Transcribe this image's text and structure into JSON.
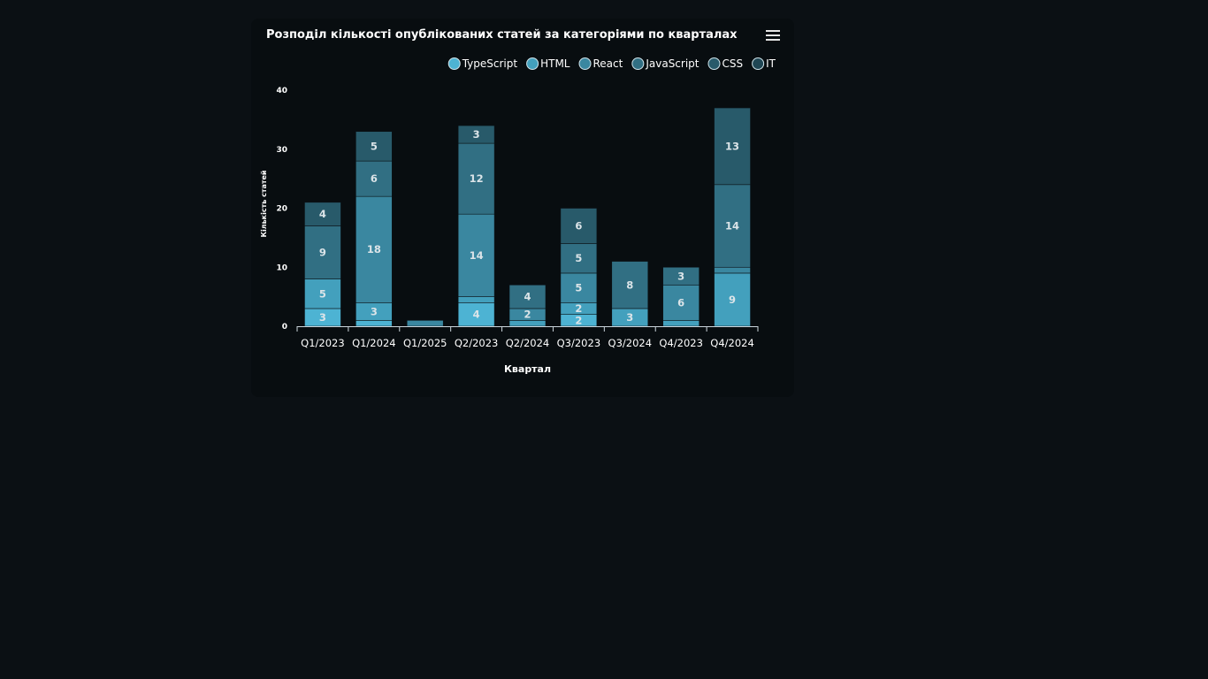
{
  "chart_data": {
    "type": "bar",
    "stacked": true,
    "title": "Розподіл кількості опублікованих статей за категоріями по кварталах",
    "xlabel": "Квартал",
    "ylabel": "Кількість статей",
    "ylim": [
      0,
      40
    ],
    "yticks": [
      0,
      10,
      20,
      30,
      40
    ],
    "grid": false,
    "legend_position": "top-right",
    "categories": [
      "Q1/2023",
      "Q1/2024",
      "Q1/2025",
      "Q2/2023",
      "Q2/2024",
      "Q3/2023",
      "Q3/2024",
      "Q4/2023",
      "Q4/2024"
    ],
    "series": [
      {
        "name": "TypeScript",
        "color": "#4db3d3",
        "values": [
          3,
          1,
          0,
          4,
          0,
          2,
          0,
          0,
          0
        ]
      },
      {
        "name": "HTML",
        "color": "#43a0bd",
        "values": [
          5,
          3,
          0,
          1,
          1,
          2,
          3,
          1,
          9
        ]
      },
      {
        "name": "React",
        "color": "#3a87a0",
        "values": [
          0,
          18,
          1,
          14,
          2,
          5,
          0,
          6,
          1
        ]
      },
      {
        "name": "JavaScript",
        "color": "#316f83",
        "values": [
          9,
          6,
          0,
          12,
          4,
          5,
          8,
          3,
          14
        ]
      },
      {
        "name": "CSS",
        "color": "#285a6a",
        "values": [
          4,
          5,
          0,
          3,
          0,
          6,
          0,
          0,
          13
        ]
      },
      {
        "name": "IT",
        "color": "#1f4654",
        "values": [
          0,
          0,
          0,
          0,
          0,
          0,
          0,
          0,
          0
        ]
      }
    ],
    "data_labels": {
      "min_value": 2
    }
  },
  "toolbar": {
    "menu_icon": "hamburger-menu-icon"
  }
}
